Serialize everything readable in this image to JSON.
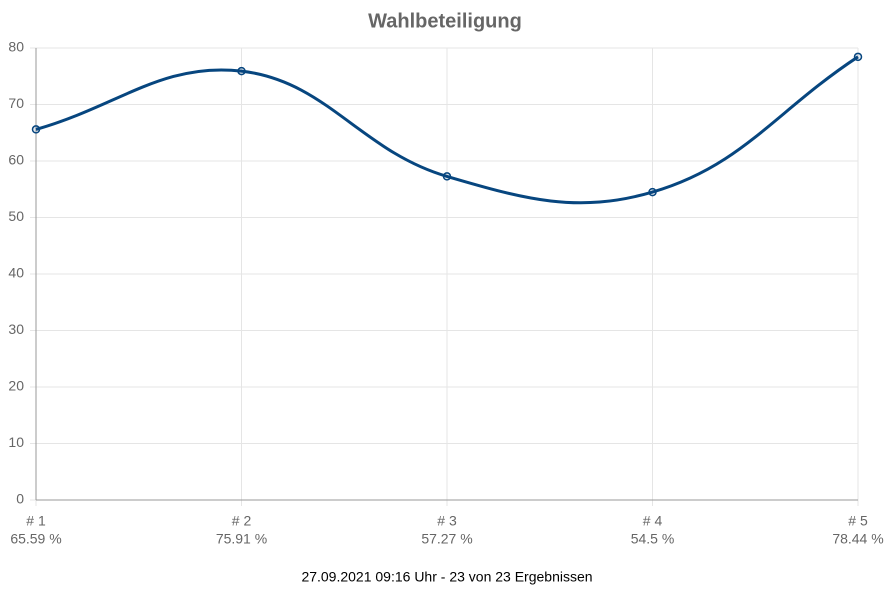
{
  "chart_data": {
    "type": "line",
    "title": "Wahlbeteiligung",
    "categories": [
      "# 1",
      "# 2",
      "# 3",
      "# 4",
      "# 5"
    ],
    "values": [
      65.59,
      75.91,
      57.27,
      54.5,
      78.44
    ],
    "value_labels": [
      "65.59 %",
      "75.91 %",
      "57.27 %",
      "54.5 %",
      "78.44 %"
    ],
    "color": "#07467f",
    "ylim": [
      0,
      80
    ],
    "yticks": [
      0,
      10,
      20,
      30,
      40,
      50,
      60,
      70,
      80
    ],
    "grid": true,
    "footer": "27.09.2021 09:16 Uhr - 23 von 23 Ergebnissen"
  }
}
